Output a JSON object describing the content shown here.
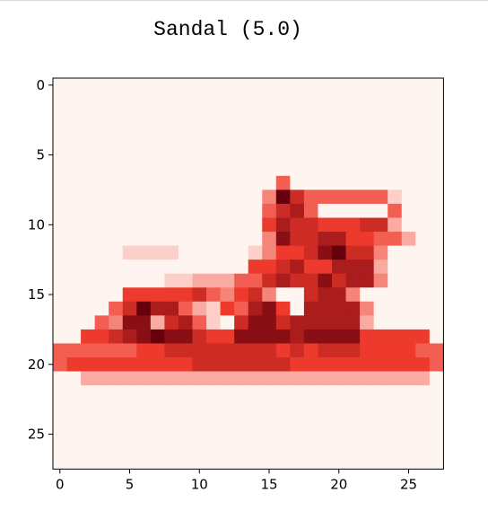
{
  "chart_data": {
    "type": "heatmap",
    "title": "Sandal (5.0)",
    "colormap": "Reds",
    "colors": {
      "low": "#fff5f0",
      "mid": "#ef3b2c",
      "high": "#67000d"
    },
    "xlabel": "",
    "ylabel": "",
    "xlim": [
      0,
      27
    ],
    "ylim": [
      27,
      0
    ],
    "x_ticks": [
      0,
      5,
      10,
      15,
      20,
      25
    ],
    "y_ticks": [
      0,
      5,
      10,
      15,
      20,
      25
    ],
    "rows": 28,
    "cols": 28,
    "values_scale": [
      0,
      9
    ],
    "values": [
      "............................",
      "............................",
      "............................",
      "............................",
      "............................",
      "............................",
      "............................",
      "................4...........",
      "...............3964444441...",
      "...............4674000004...",
      "...............5766555662...",
      "...............38667755442..",
      ".....1111.....1355689663....",
      "..............5567557772....",
      "........1122244676686773....",
      ".....55555643563006773......",
      "....4697742154785077773.....",
      "...43882674106886777772.....",
      "..5567898865588887888855555.",
      "4444445566666666565666555544",
      "4555555555666666655555555554",
      "..2222222222222222222222222.",
      "............................",
      "............................",
      "............................",
      "............................",
      "............................",
      "............................"
    ]
  }
}
